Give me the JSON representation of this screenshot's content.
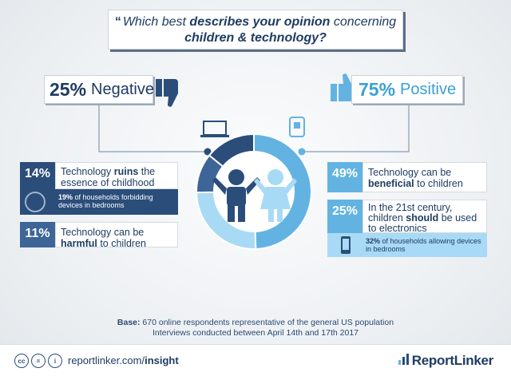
{
  "question": {
    "quote_mark": "“",
    "part1": "Which best ",
    "bold": "describes your opinion",
    "part2": " concerning",
    "line2": "children & technology?"
  },
  "negative": {
    "pct": "25%",
    "label": "Negative"
  },
  "positive": {
    "pct": "75%",
    "label": "Positive"
  },
  "stats": {
    "ruins": {
      "pct": "14%",
      "pre": "Technology ",
      "bold": "ruins",
      "post": " the essence of childhood",
      "sub_bold": "19%",
      "sub": " of households forbidding devices in bedrooms"
    },
    "harmful": {
      "pct": "11%",
      "pre": "Technology can be ",
      "bold": "harmful",
      "post": " to children"
    },
    "beneficial": {
      "pct": "49%",
      "pre": "Technology can be ",
      "bold": "beneficial",
      "post": " to children"
    },
    "electronics": {
      "pct": "25%",
      "pre": "In the 21st century, children ",
      "bold": "should",
      "post": " be used to electronics",
      "sub_bold": "32%",
      "sub": " of households allowing devices in bedrooms"
    }
  },
  "base": {
    "label": "Base:",
    "line1": " 670 online respondents representative of the general US population",
    "line2": "Interviews conducted between April 14th and 17th 2017"
  },
  "footer": {
    "url_pre": "reportlinker.com/",
    "url_bold": "insight",
    "brand": "ReportLinker",
    "cc_icons": [
      "cc",
      "=",
      "i"
    ]
  },
  "colors": {
    "dark_blue": "#2b4d7a",
    "mid_blue": "#3d6597",
    "light_blue": "#63b3e2",
    "pale_blue": "#a9daf5"
  },
  "chart_data": {
    "type": "pie",
    "title": "",
    "categories": [
      "Technology ruins the essence of childhood",
      "Technology can be harmful to children",
      "Technology can be beneficial to children",
      "In the 21st century, children should be used to electronics"
    ],
    "values": [
      14,
      11,
      49,
      25
    ],
    "groups": {
      "Negative": 25,
      "Positive": 75
    }
  }
}
